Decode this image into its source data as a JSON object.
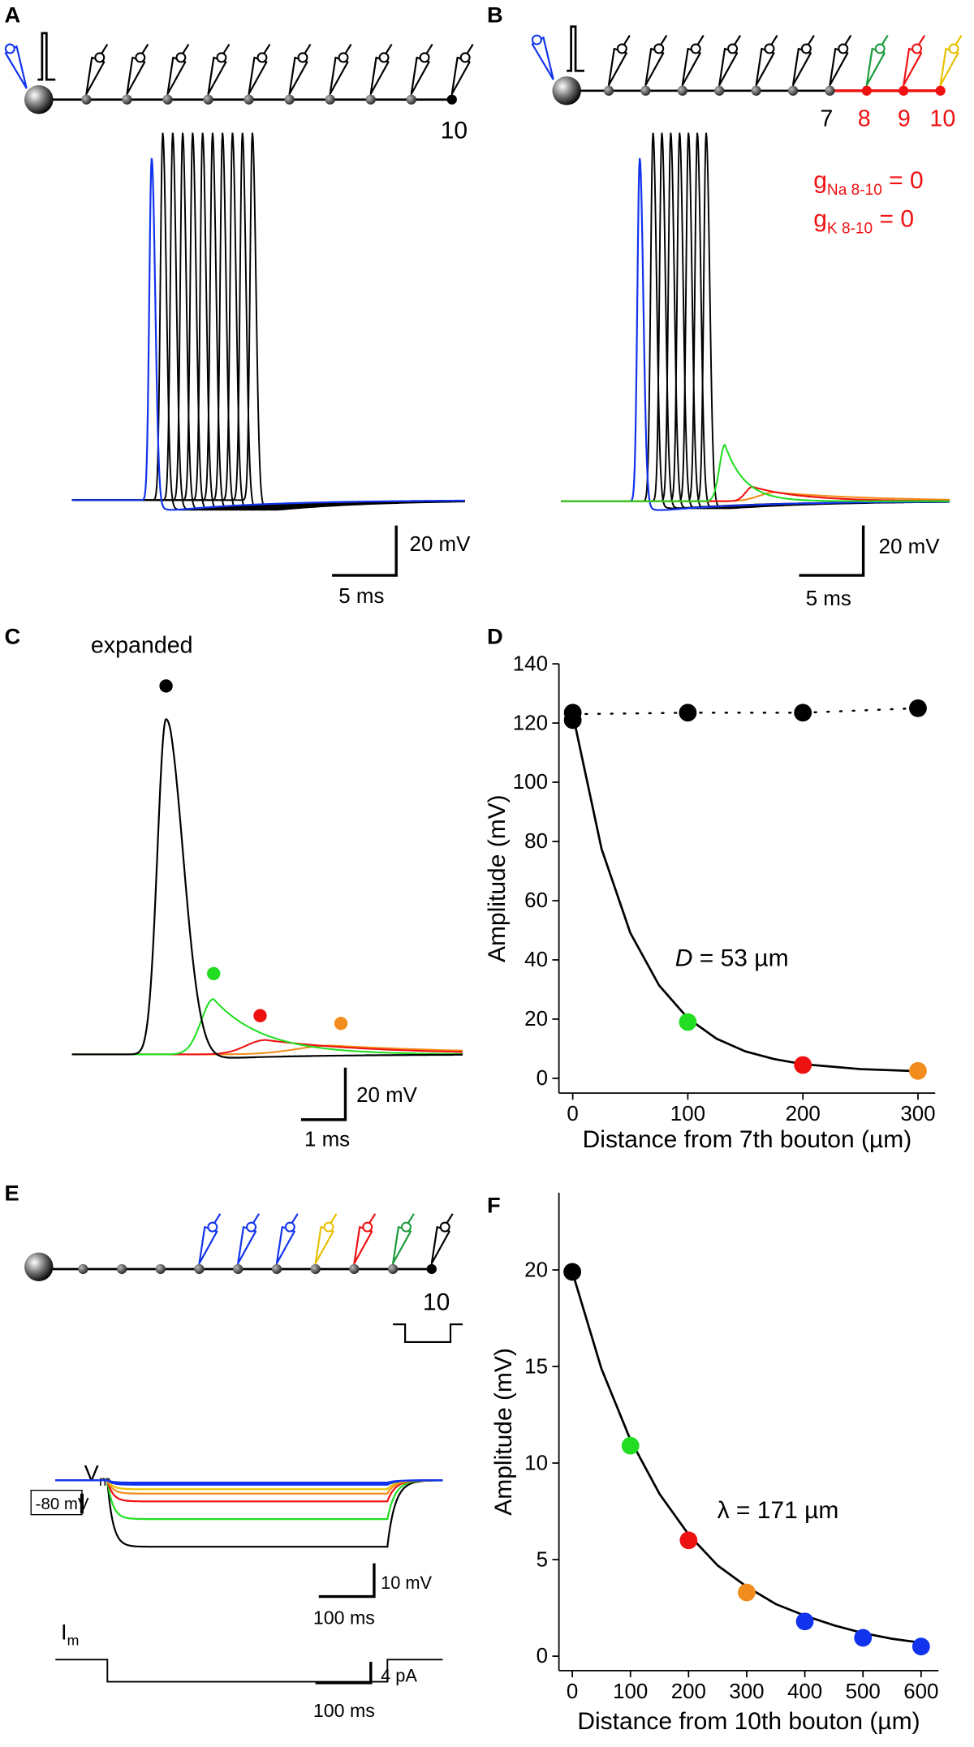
{
  "panels": {
    "A": {
      "label": "A",
      "last_bouton": "10",
      "scale_v": "20 mV",
      "scale_t": "5 ms"
    },
    "B": {
      "label": "B",
      "bouton_numbers": [
        "7",
        "8",
        "9",
        "10"
      ],
      "g_na": {
        "symbol": "g",
        "subscript": "Na 8-10",
        "rest": " = 0"
      },
      "g_k": {
        "symbol": "g",
        "subscript": "K 8-10",
        "rest": " = 0"
      },
      "scale_v": "20 mV",
      "scale_t": "5 ms"
    },
    "C": {
      "label": "C",
      "title": "expanded",
      "scale_v": "20 mV",
      "scale_t": "1 ms"
    },
    "E": {
      "label": "E",
      "last_bouton": "10",
      "vm": {
        "symbol": "V",
        "subscript": "m"
      },
      "holding": "-80 mV",
      "scale_v": "10 mV",
      "scale_t_v": "100 ms",
      "im": {
        "symbol": "I",
        "subscript": "m"
      },
      "scale_i": "4 pA",
      "scale_t_i": "100 ms"
    }
  },
  "chart_data": [
    {
      "type": "scatter",
      "panel_label": "D",
      "x_label": "Distance from 7th bouton (µm)",
      "y_label": "Amplitude (mV)",
      "annotation": {
        "italic": "D",
        "rest": " = 53 µm"
      },
      "xlim": [
        -12,
        315
      ],
      "ylim": [
        -5,
        140
      ],
      "xticks": [
        0,
        100,
        200,
        300
      ],
      "yticks": [
        0,
        20,
        40,
        60,
        80,
        100,
        120,
        140
      ],
      "series": [
        {
          "style": "dotted",
          "color": "#000000",
          "x": [
            0,
            100,
            200,
            300
          ],
          "values": [
            123,
            123.5,
            123.5,
            125
          ]
        },
        {
          "style": "line",
          "color": "#000000",
          "x": [
            0,
            25,
            50,
            75,
            100,
            125,
            150,
            175,
            200,
            250,
            300
          ],
          "values": [
            123,
            77.5,
            49.1,
            31.4,
            20.3,
            13.4,
            9.1,
            6.5,
            4.8,
            3.1,
            2.4
          ]
        },
        {
          "style": "marker",
          "color": "#000000",
          "x": [
            0,
            0,
            100,
            200,
            300
          ],
          "values": [
            121,
            123.5,
            123.5,
            123.5,
            125
          ]
        },
        {
          "style": "marker",
          "color": "#22dd22",
          "x": [
            100
          ],
          "values": [
            19
          ]
        },
        {
          "style": "marker",
          "color": "#ee1111",
          "x": [
            200
          ],
          "values": [
            4.5
          ]
        },
        {
          "style": "marker",
          "color": "#f28c1c",
          "x": [
            300
          ],
          "values": [
            2.5
          ]
        }
      ]
    },
    {
      "type": "scatter",
      "panel_label": "F",
      "x_label": "Distance from 10th bouton (µm)",
      "y_label": "Amplitude (mV)",
      "annotation": {
        "italic": "",
        "rest": "λ = 171 µm"
      },
      "xlim": [
        -23,
        630
      ],
      "ylim": [
        -0.75,
        24
      ],
      "xticks": [
        0,
        100,
        200,
        300,
        400,
        500,
        600
      ],
      "yticks": [
        0,
        5,
        10,
        15,
        20
      ],
      "series": [
        {
          "style": "line",
          "color": "#000000",
          "x": [
            0,
            50,
            100,
            150,
            200,
            250,
            300,
            350,
            400,
            450,
            500,
            550,
            600
          ],
          "values": [
            19.9,
            14.9,
            11.2,
            8.4,
            6.3,
            4.7,
            3.6,
            2.7,
            2.1,
            1.6,
            1.2,
            0.9,
            0.7
          ]
        },
        {
          "style": "marker",
          "color": "#000000",
          "x": [
            0
          ],
          "values": [
            19.9
          ]
        },
        {
          "style": "marker",
          "color": "#22dd22",
          "x": [
            100
          ],
          "values": [
            10.9
          ]
        },
        {
          "style": "marker",
          "color": "#ee1111",
          "x": [
            200
          ],
          "values": [
            6.0
          ]
        },
        {
          "style": "marker",
          "color": "#f28c1c",
          "x": [
            300
          ],
          "values": [
            3.3
          ]
        },
        {
          "style": "marker",
          "color": "#1133ee",
          "x": [
            400,
            500,
            600
          ],
          "values": [
            1.8,
            0.95,
            0.5
          ]
        }
      ]
    }
  ]
}
